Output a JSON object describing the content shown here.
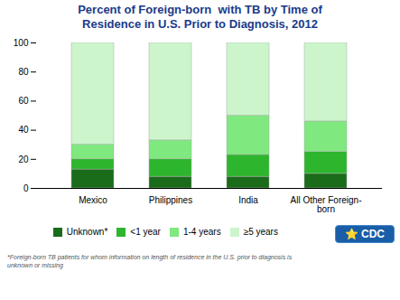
{
  "chart_data": {
    "type": "bar",
    "title": "Percent of Foreign-born  with TB by Time of\nResidence in U.S. Prior to Diagnosis, 2012",
    "categories": [
      "Mexico",
      "Philippines",
      "India",
      "All Other Foreign-\nborn"
    ],
    "series": [
      {
        "name": "Unknown*",
        "color": "#1a6b1a",
        "values": [
          13,
          8,
          8,
          10
        ]
      },
      {
        "name": "<1 year",
        "color": "#2db52d",
        "values": [
          7,
          12,
          15,
          15
        ]
      },
      {
        "name": "1-4 years",
        "color": "#7fe87f",
        "values": [
          10,
          13,
          27,
          21
        ]
      },
      {
        "name": "≥5 years",
        "color": "#ccf5cc",
        "values": [
          70,
          67,
          50,
          54
        ]
      }
    ],
    "ylim": [
      0,
      100
    ],
    "yticks": [
      0,
      20,
      40,
      60,
      80,
      100
    ],
    "stacked": true,
    "grid": false,
    "legend": "bottom",
    "annotations": [
      "*Foreign-born TB patients for whom information on length of residence in the U.S. prior to diagnosis is\nunknown or missing",
      "⭐",
      "CDC"
    ]
  }
}
